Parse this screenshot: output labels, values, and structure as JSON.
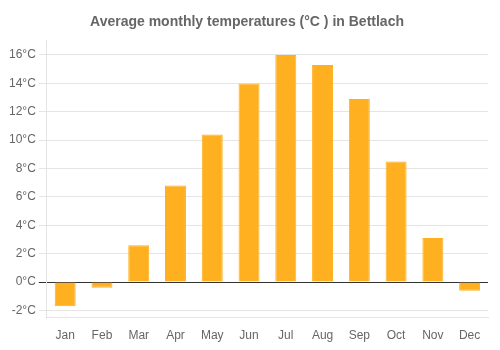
{
  "chart_data": {
    "type": "bar",
    "title": "Average monthly temperatures (°C ) in Bettlach",
    "categories": [
      "Jan",
      "Feb",
      "Mar",
      "Apr",
      "May",
      "Jun",
      "Jul",
      "Aug",
      "Sep",
      "Oct",
      "Nov",
      "Dec"
    ],
    "values": [
      -1.7,
      -0.4,
      2.6,
      6.8,
      10.4,
      14.0,
      16.0,
      15.3,
      12.9,
      8.5,
      3.1,
      -0.6
    ],
    "color": "#FFB020",
    "ylim": [
      -2.5,
      17.0
    ],
    "yticks": [
      {
        "value": -2,
        "label": "-2°C"
      },
      {
        "value": 0,
        "label": "0°C"
      },
      {
        "value": 2,
        "label": "2°C"
      },
      {
        "value": 4,
        "label": "4°C"
      },
      {
        "value": 6,
        "label": "6°C"
      },
      {
        "value": 8,
        "label": "8°C"
      },
      {
        "value": 10,
        "label": "10°C"
      },
      {
        "value": 12,
        "label": "12°C"
      },
      {
        "value": 14,
        "label": "14°C"
      },
      {
        "value": 16,
        "label": "16°C"
      }
    ],
    "grid": true
  }
}
